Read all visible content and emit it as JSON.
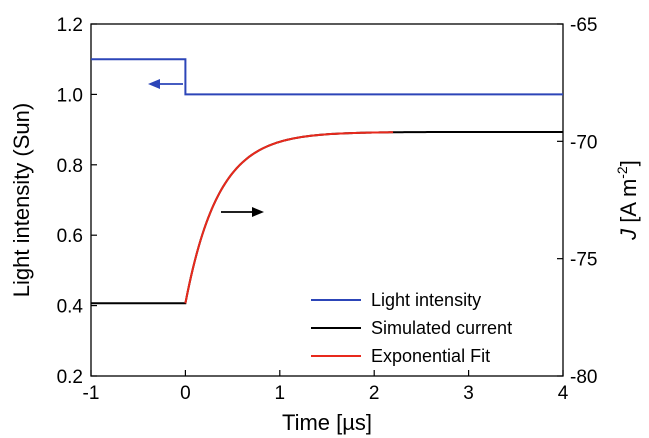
{
  "chart_data": {
    "type": "line",
    "x": {
      "label": "Time [µs]",
      "range": [
        -1,
        4
      ],
      "ticks": [
        -1,
        0,
        1,
        2,
        3,
        4
      ],
      "tick_labels": [
        "-1",
        "0",
        "1",
        "2",
        "3",
        "4"
      ]
    },
    "y_left": {
      "label": "Light intensity (Sun)",
      "range": [
        0.2,
        1.2
      ],
      "ticks": [
        0.2,
        0.4,
        0.6,
        0.8,
        1.0,
        1.2
      ],
      "tick_labels": [
        "0.2",
        "0.4",
        "0.6",
        "0.8",
        "1.0",
        "1.2"
      ]
    },
    "y_right": {
      "label_italic": "J",
      "label_rest": " [A m",
      "label_sup": "-2",
      "label_end": "]",
      "range": [
        -80,
        -65
      ],
      "ticks": [
        -80,
        -75,
        -70,
        -65
      ],
      "tick_labels": [
        "-80",
        "-75",
        "-70",
        "-65"
      ]
    },
    "series": [
      {
        "name": "Light intensity",
        "color": "#2c45b8",
        "axis": "left",
        "points": [
          [
            -1,
            1.1
          ],
          [
            0,
            1.1
          ],
          [
            0,
            1.0
          ],
          [
            4,
            1.0
          ]
        ]
      },
      {
        "name": "Simulated current",
        "color": "#000000",
        "axis": "right",
        "baseline": -76.9,
        "step_time": 0,
        "final": -69.6,
        "tau": 0.35,
        "x_end": 4
      },
      {
        "name": "Exponential Fit",
        "color": "#e8291c",
        "axis": "right",
        "baseline": -76.9,
        "final": -69.6,
        "tau": 0.35,
        "x_start": 0,
        "x_end": 2.2
      }
    ],
    "annotations": [
      {
        "type": "arrow",
        "points_to": "left axis",
        "color": "#2c45b8"
      },
      {
        "type": "arrow",
        "points_to": "right axis",
        "color": "#000000"
      }
    ],
    "legend": {
      "position": "bottom-right"
    },
    "grid": false
  }
}
